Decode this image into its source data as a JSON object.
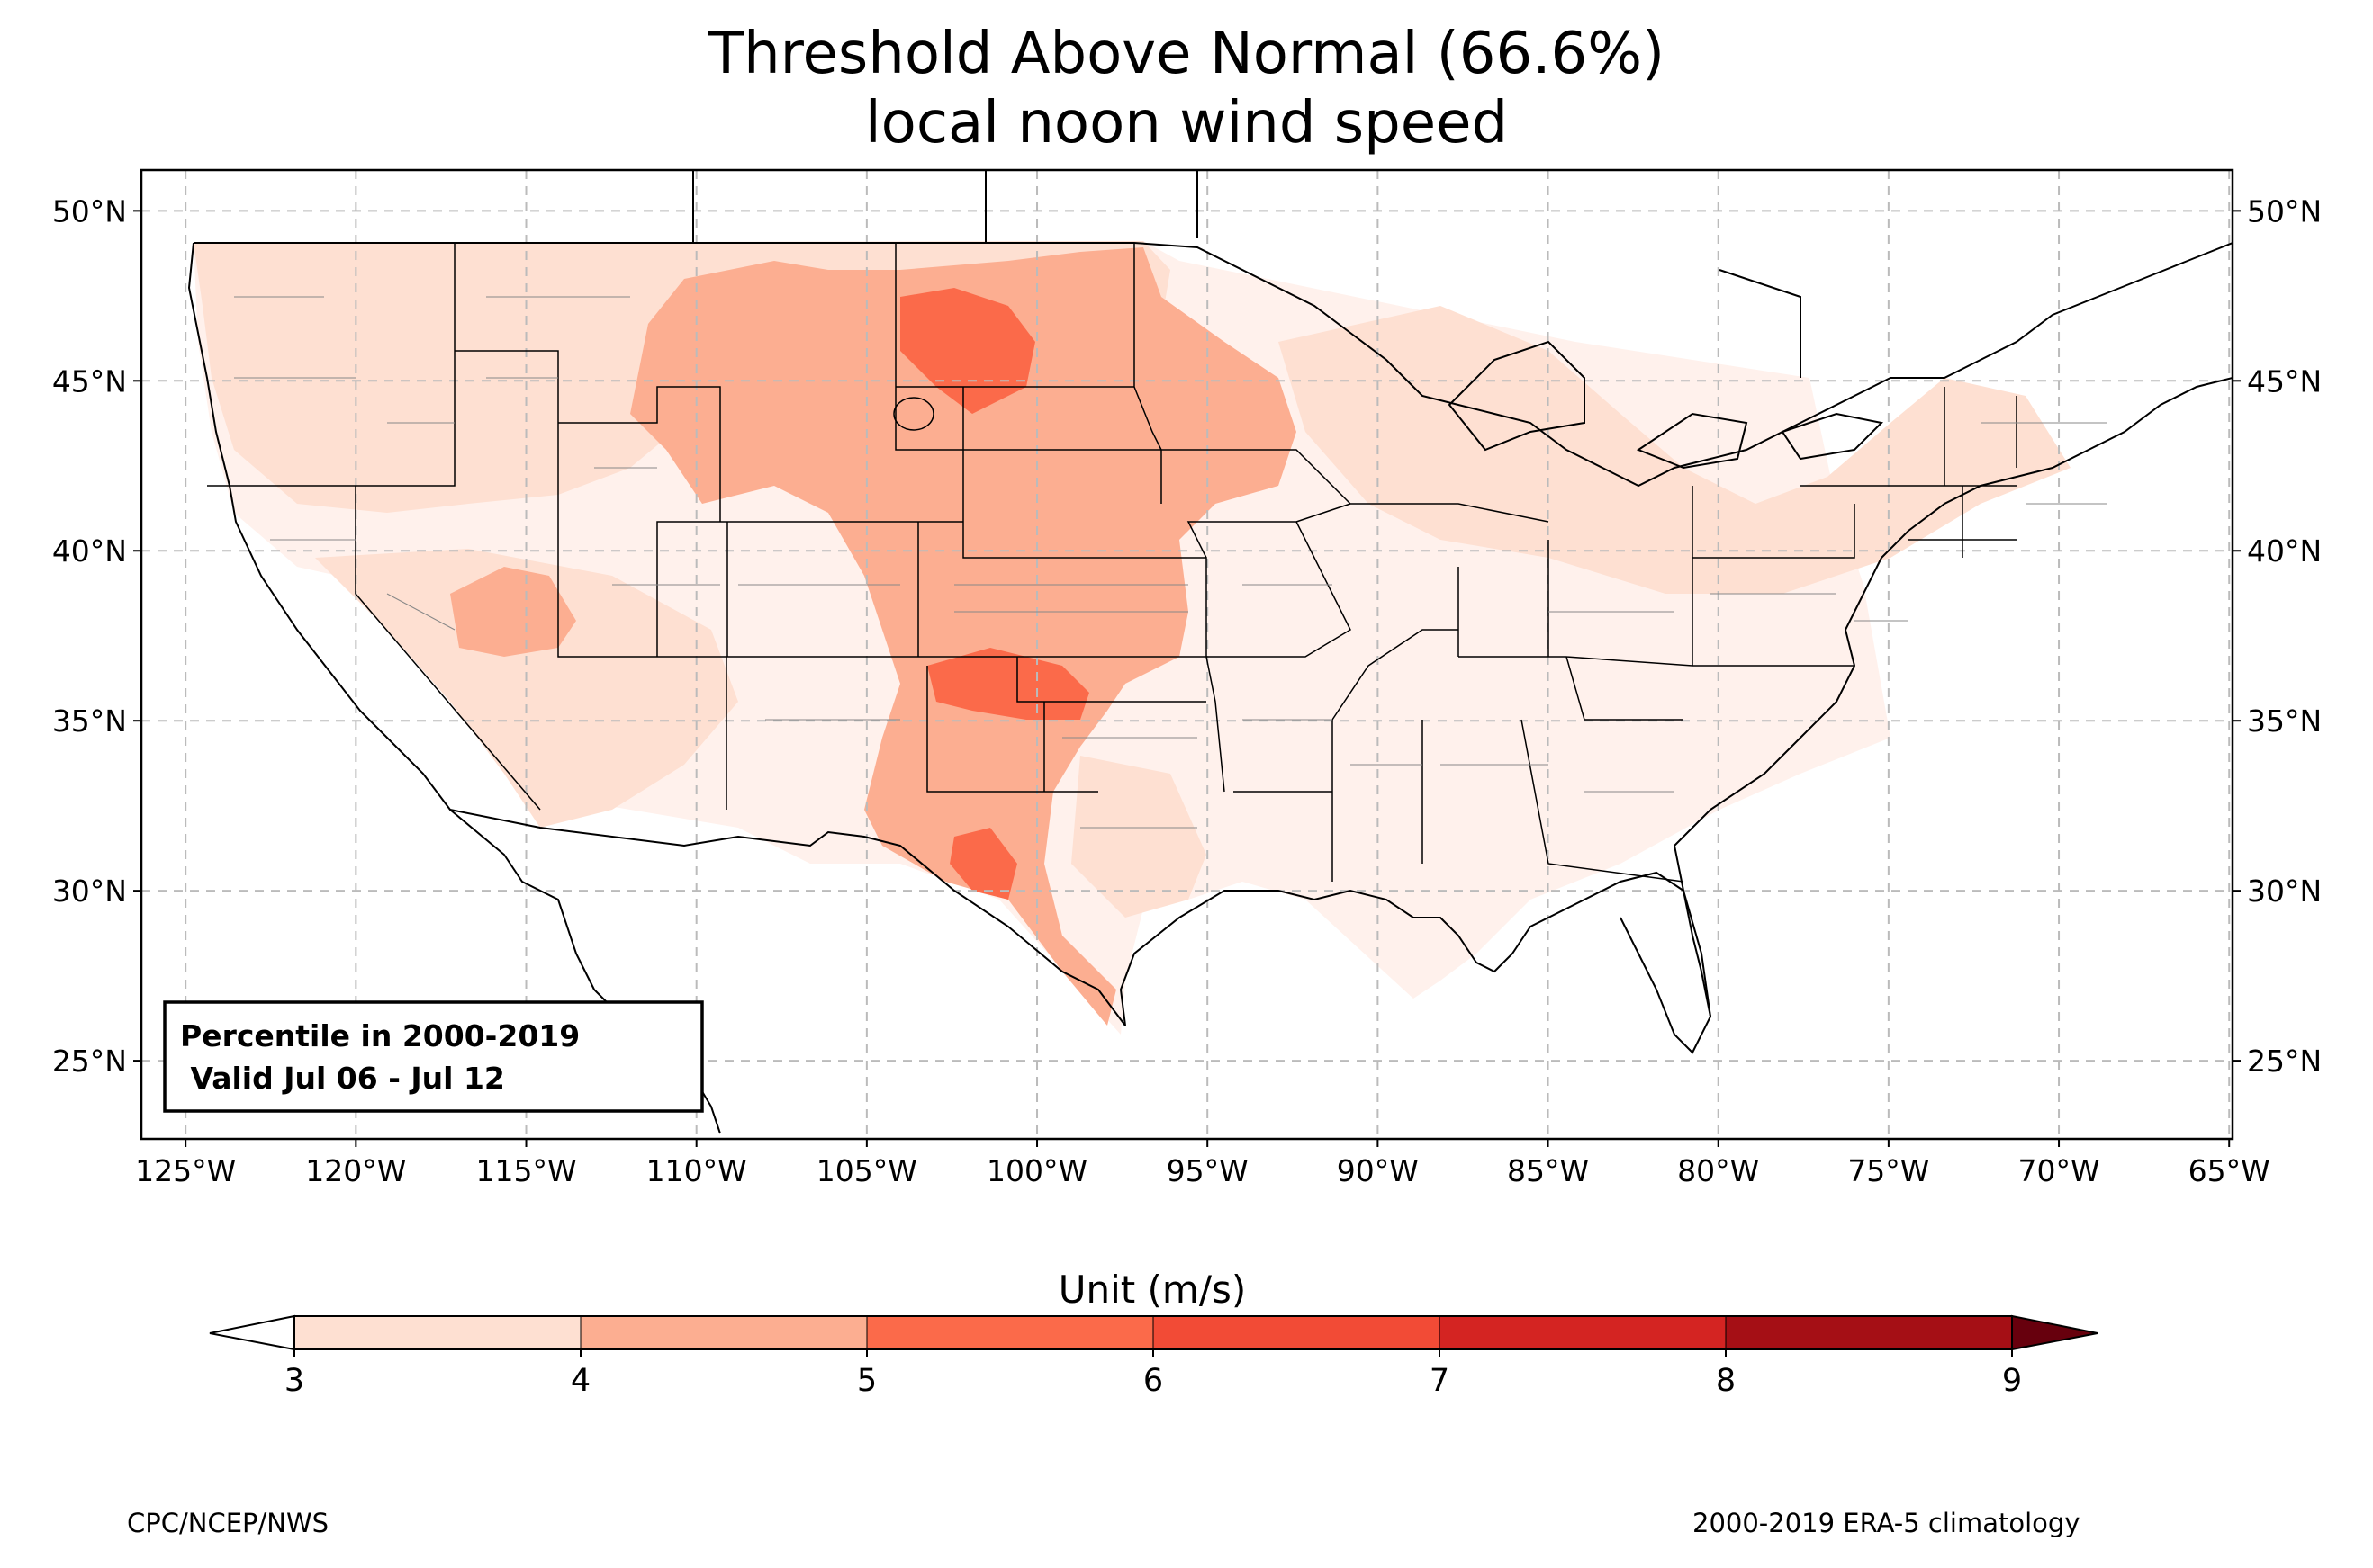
{
  "title": {
    "line1": "Threshold Above Normal (66.6%)",
    "line2": "local noon wind speed"
  },
  "map": {
    "longitude_ticks": [
      "125°W",
      "120°W",
      "115°W",
      "110°W",
      "105°W",
      "100°W",
      "95°W",
      "90°W",
      "85°W",
      "80°W",
      "75°W",
      "70°W",
      "65°W"
    ],
    "latitude_ticks": [
      "50°N",
      "45°N",
      "40°N",
      "35°N",
      "30°N",
      "25°N"
    ],
    "extent": {
      "lon": [
        -126.3,
        -64.9
      ],
      "lat": [
        22.7,
        51.2
      ]
    },
    "gridlines": true,
    "annotation": {
      "line1": "Percentile in 2000-2019",
      "line2": " Valid Jul 06 - Jul 12"
    },
    "field_regions": [
      {
        "name": "western-plains-band",
        "level": "4-5",
        "color": "#fcae91"
      },
      {
        "name": "northern-plains-core",
        "level": "5-6",
        "color": "#fb6a4a"
      },
      {
        "name": "southern-plains-core",
        "level": "5-6",
        "color": "#fb6a4a"
      },
      {
        "name": "great-basin-pocket",
        "level": "4-5",
        "color": "#fcae91"
      },
      {
        "name": "eastern-us",
        "level": "3-4",
        "color": "#fee0d2"
      }
    ]
  },
  "colorbar": {
    "title": "Unit (m/s)",
    "ticks": [
      "3",
      "4",
      "5",
      "6",
      "7",
      "8",
      "9"
    ],
    "colors": [
      "#fee0d2",
      "#fcae91",
      "#fb6a4a",
      "#f24b36",
      "#d42422",
      "#a50f15"
    ],
    "extend": "both",
    "under_color": "#ffffff",
    "over_color": "#67000d"
  },
  "credits": {
    "left": "CPC/NCEP/NWS",
    "right": "2000-2019 ERA-5 climatology"
  }
}
